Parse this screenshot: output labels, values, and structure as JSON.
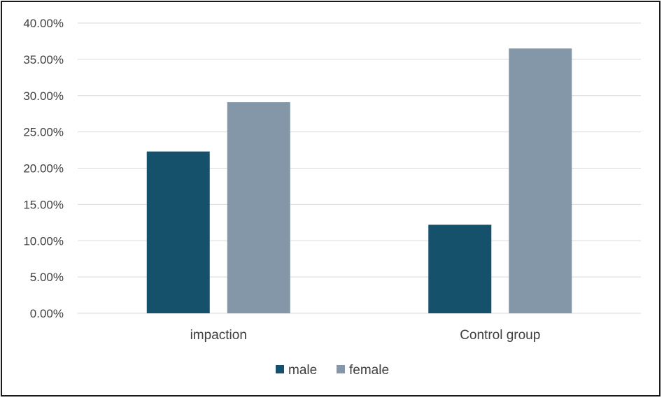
{
  "chart_data": {
    "type": "bar",
    "categories": [
      "impaction",
      "Control group"
    ],
    "series": [
      {
        "name": "male",
        "values": [
          22.3,
          12.2
        ],
        "color": "#15516b"
      },
      {
        "name": "female",
        "values": [
          29.1,
          36.5
        ],
        "color": "#8397a9"
      }
    ],
    "y_ticks": [
      "0.00%",
      "5.00%",
      "10.00%",
      "15.00%",
      "20.00%",
      "25.00%",
      "30.00%",
      "35.00%",
      "40.00%"
    ],
    "ylim": [
      0,
      40
    ],
    "y_unit": "%",
    "grid": true,
    "legend_position": "bottom",
    "colors": {
      "gridline": "#d9d9d9",
      "text": "#404040",
      "border": "#1a1a1a"
    }
  }
}
